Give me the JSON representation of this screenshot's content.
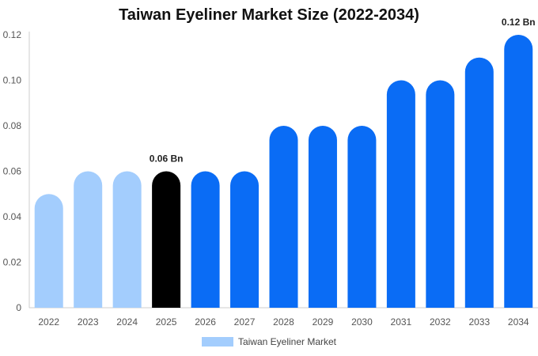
{
  "chart_data": {
    "type": "bar",
    "title": "Taiwan Eyeliner Market Size (2022-2034)",
    "xlabel": "",
    "ylabel": "",
    "ylim": [
      0,
      0.12
    ],
    "yticks": [
      "0",
      "0.02",
      "0.04",
      "0.06",
      "0.08",
      "0.10",
      "0.12"
    ],
    "ytick_values": [
      0,
      0.02,
      0.04,
      0.06,
      0.08,
      0.1,
      0.12
    ],
    "categories": [
      "2022",
      "2023",
      "2024",
      "2025",
      "2026",
      "2027",
      "2028",
      "2029",
      "2030",
      "2031",
      "2032",
      "2033",
      "2034"
    ],
    "series": [
      {
        "name": "Taiwan Eyeliner Market",
        "values": [
          0.05,
          0.06,
          0.06,
          0.06,
          0.06,
          0.06,
          0.08,
          0.08,
          0.08,
          0.1,
          0.1,
          0.11,
          0.12
        ]
      }
    ],
    "bar_colors": [
      "#a3cdfd",
      "#a3cdfd",
      "#a3cdfd",
      "#000000",
      "#0a6cf5",
      "#0a6cf5",
      "#0a6cf5",
      "#0a6cf5",
      "#0a6cf5",
      "#0a6cf5",
      "#0a6cf5",
      "#0a6cf5",
      "#0a6cf5"
    ],
    "annotations": [
      {
        "category": "2025",
        "text": "0.06 Bn"
      },
      {
        "category": "2034",
        "text": "0.12 Bn"
      }
    ],
    "grid": false,
    "legend_position": "bottom",
    "legend_swatch_color": "#a3cdfd"
  }
}
